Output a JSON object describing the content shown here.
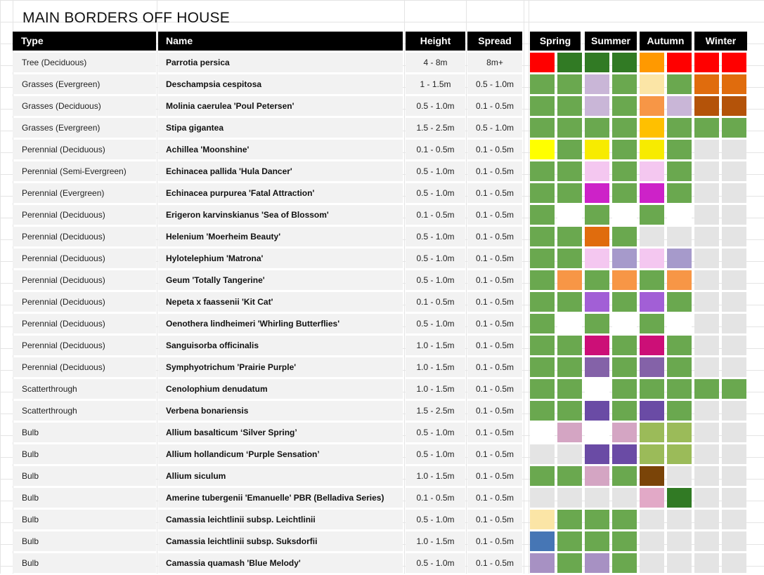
{
  "title": "MAIN BORDERS OFF HOUSE",
  "headers": {
    "type": "Type",
    "name": "Name",
    "height": "Height",
    "spread": "Spread",
    "seasons": [
      "Spring",
      "Summer",
      "Autumn",
      "Winter"
    ]
  },
  "colors": {
    "G": "#6aa84f",
    "W": "#ffffff",
    "E": "#e4e4e4",
    "R": "#ff0000",
    "D": "#317a24",
    "O": "#ff9900",
    "B": "#e69138",
    "A": "#ffc000",
    "L": "#c9b6d7",
    "S": "#f4c7f0",
    "M": "#cd22c8",
    "P": "#e06c0d",
    "V": "#a25fd6",
    "U": "#bf5a0f",
    "N": "#cc0f77",
    "Q": "#8462a8",
    "I": "#6a4ba5",
    "K": "#d4a5c3",
    "H": "#9bbb59",
    "X": "#7a4408",
    "T": "#fdeaad",
    "Y": "#ffff00",
    "Z": "#f7eb00",
    "C": "#4676b5",
    "J": "#a791c3",
    "F": "#f79646",
    "k": "#e2a9c7",
    "l": "#fbe5a6",
    "u": "#b45309",
    "v": "#a69acb"
  },
  "rows": [
    {
      "type": "Tree (Deciduous)",
      "name": "Parrotia persica",
      "height": "4 - 8m",
      "spread": "8m+",
      "seasons": "RDDDORRR"
    },
    {
      "type": "Grasses (Evergreen)",
      "name": "Deschampsia cespitosa",
      "height": "1 - 1.5m",
      "spread": "0.5 - 1.0m",
      "seasons": "GGLGlGPP"
    },
    {
      "type": "Grasses (Deciduous)",
      "name": "Molinia caerulea 'Poul Petersen'",
      "height": "0.5 - 1.0m",
      "spread": "0.1 - 0.5m",
      "seasons": "GGLGFLuu"
    },
    {
      "type": "Grasses (Evergreen)",
      "name": "Stipa gigantea",
      "height": "1.5 - 2.5m",
      "spread": "0.5 - 1.0m",
      "seasons": "GGGGAGGG"
    },
    {
      "type": "Perennial (Deciduous)",
      "name": "Achillea 'Moonshine'",
      "height": "0.1 - 0.5m",
      "spread": "0.1 - 0.5m",
      "seasons": "YGZGZGEE"
    },
    {
      "type": "Perennial (Semi-Evergreen)",
      "name": "Echinacea pallida 'Hula Dancer'",
      "height": "0.5 - 1.0m",
      "spread": "0.1 - 0.5m",
      "seasons": "GGSGSGEE"
    },
    {
      "type": "Perennial (Evergreen)",
      "name": "Echinacea purpurea 'Fatal Attraction'",
      "height": "0.5 - 1.0m",
      "spread": "0.1 - 0.5m",
      "seasons": "GGMGMGEE"
    },
    {
      "type": "Perennial (Deciduous)",
      "name": "Erigeron karvinskianus 'Sea of Blossom'",
      "height": "0.1 - 0.5m",
      "spread": "0.1 - 0.5m",
      "seasons": "GWGWGWEE"
    },
    {
      "type": "Perennial (Deciduous)",
      "name": "Helenium 'Moerheim Beauty'",
      "height": "0.5 - 1.0m",
      "spread": "0.1 - 0.5m",
      "seasons": "GGPGEEEE"
    },
    {
      "type": "Perennial (Deciduous)",
      "name": "Hylotelephium 'Matrona'",
      "height": "0.5 - 1.0m",
      "spread": "0.1 - 0.5m",
      "seasons": "GGSvSvEE"
    },
    {
      "type": "Perennial (Deciduous)",
      "name": "Geum 'Totally Tangerine'",
      "height": "0.5 - 1.0m",
      "spread": "0.1 - 0.5m",
      "seasons": "GFGFGFEE"
    },
    {
      "type": "Perennial (Deciduous)",
      "name": "Nepeta x faassenii 'Kit Cat'",
      "height": "0.1 - 0.5m",
      "spread": "0.1 - 0.5m",
      "seasons": "GGVGVGEE"
    },
    {
      "type": "Perennial (Deciduous)",
      "name": "Oenothera lindheimeri 'Whirling Butterflies'",
      "height": "0.5 - 1.0m",
      "spread": "0.1 - 0.5m",
      "seasons": "GWGWGWEE"
    },
    {
      "type": "Perennial (Deciduous)",
      "name": "Sanguisorba officinalis",
      "height": "1.0 - 1.5m",
      "spread": "0.1 - 0.5m",
      "seasons": "GGNGNGEE"
    },
    {
      "type": "Perennial (Deciduous)",
      "name": "Symphyotrichum 'Prairie Purple'",
      "height": "1.0 - 1.5m",
      "spread": "0.1 - 0.5m",
      "seasons": "GGQGQGEE"
    },
    {
      "type": "Scatterthrough",
      "name": "Cenolophium denudatum",
      "height": "1.0 - 1.5m",
      "spread": "0.1 - 0.5m",
      "seasons": "GGWGGGGG"
    },
    {
      "type": "Scatterthrough",
      "name": "Verbena bonariensis",
      "height": "1.5 - 2.5m",
      "spread": "0.1 - 0.5m",
      "seasons": "GGIGIGEE"
    },
    {
      "type": "Bulb",
      "name": "Allium basalticum ‘Silver Spring’",
      "height": "0.5 - 1.0m",
      "spread": "0.1 - 0.5m",
      "seasons": "WKWKHHEE"
    },
    {
      "type": "Bulb",
      "name": "Allium hollandicum ‘Purple Sensation’",
      "height": "0.5 - 1.0m",
      "spread": "0.1 - 0.5m",
      "seasons": "EEIIHHEE"
    },
    {
      "type": "Bulb",
      "name": "Allium siculum",
      "height": "1.0 - 1.5m",
      "spread": "0.1 - 0.5m",
      "seasons": "GGKGXEEE"
    },
    {
      "type": "Bulb",
      "name": "Amerine tubergenii 'Emanuelle' PBR (Belladiva Series)",
      "height": "0.1 - 0.5m",
      "spread": "0.1 - 0.5m",
      "seasons": "EEEEkDEE"
    },
    {
      "type": "Bulb",
      "name": "Camassia leichtlinii subsp. Leichtlinii",
      "height": "0.5 - 1.0m",
      "spread": "0.1 - 0.5m",
      "seasons": "lGGGEEEE"
    },
    {
      "type": "Bulb",
      "name": "Camassia leichtlinii subsp. Suksdorfii",
      "height": "1.0 - 1.5m",
      "spread": "0.1 - 0.5m",
      "seasons": "CGGGEEEE"
    },
    {
      "type": "Bulb",
      "name": "Camassia quamash 'Blue Melody'",
      "height": "0.5 - 1.0m",
      "spread": "0.1 - 0.5m",
      "seasons": "JGJGEEEE"
    }
  ]
}
